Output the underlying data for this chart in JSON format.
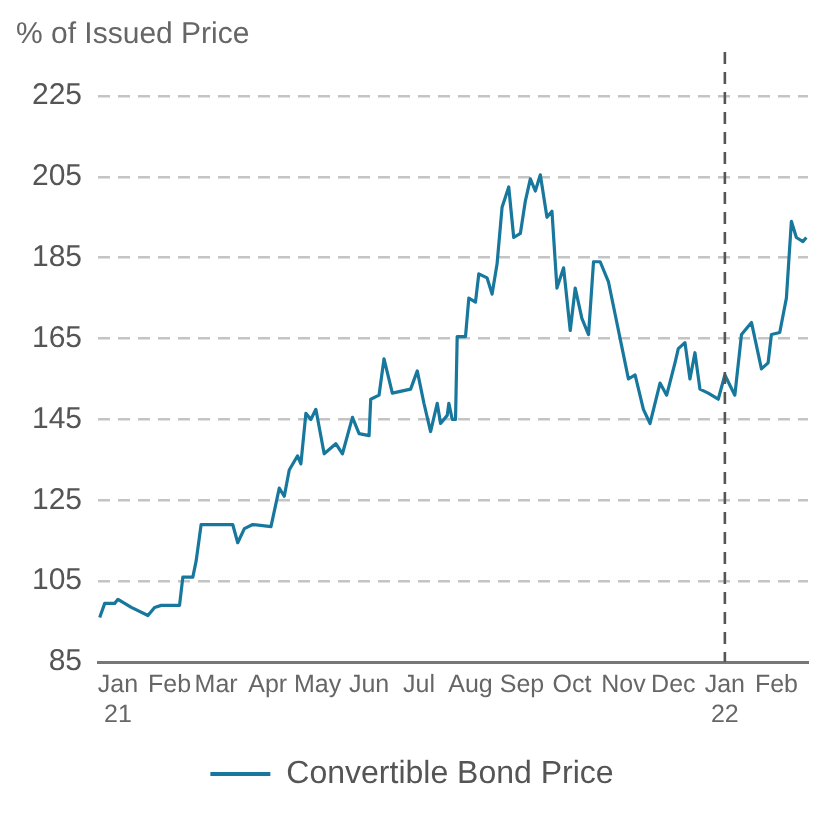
{
  "chart_data": {
    "type": "line",
    "ylabel": "% of Issued Price",
    "x": [
      "2020-12-21",
      "2020-12-24",
      "2020-12-30",
      "2021-01-01",
      "2021-01-09",
      "2021-01-19",
      "2021-01-23",
      "2021-01-27",
      "2021-02-07",
      "2021-02-09",
      "2021-02-15",
      "2021-02-17",
      "2021-02-20",
      "2021-03-11",
      "2021-03-14",
      "2021-03-18",
      "2021-03-23",
      "2021-04-03",
      "2021-04-08",
      "2021-04-11",
      "2021-04-14",
      "2021-04-19",
      "2021-04-21",
      "2021-04-24",
      "2021-04-27",
      "2021-04-30",
      "2021-05-05",
      "2021-05-12",
      "2021-05-16",
      "2021-05-22",
      "2021-05-26",
      "2021-06-01",
      "2021-06-02",
      "2021-06-07",
      "2021-06-10",
      "2021-06-15",
      "2021-06-26",
      "2021-06-30",
      "2021-07-04",
      "2021-07-08",
      "2021-07-12",
      "2021-07-14",
      "2021-07-18",
      "2021-07-19",
      "2021-07-21",
      "2021-07-23",
      "2021-07-24",
      "2021-07-29",
      "2021-07-31",
      "2021-08-04",
      "2021-08-06",
      "2021-08-11",
      "2021-08-14",
      "2021-08-17",
      "2021-08-20",
      "2021-08-24",
      "2021-08-27",
      "2021-08-31",
      "2021-09-03",
      "2021-09-06",
      "2021-09-09",
      "2021-09-12",
      "2021-09-16",
      "2021-09-19",
      "2021-09-22",
      "2021-09-26",
      "2021-09-30",
      "2021-10-03",
      "2021-10-07",
      "2021-10-11",
      "2021-10-14",
      "2021-10-18",
      "2021-10-23",
      "2021-10-26",
      "2021-10-31",
      "2021-11-04",
      "2021-11-08",
      "2021-11-13",
      "2021-11-17",
      "2021-11-23",
      "2021-11-27",
      "2021-12-02",
      "2021-12-04",
      "2021-12-08",
      "2021-12-11",
      "2021-12-14",
      "2021-12-17",
      "2021-12-22",
      "2021-12-28",
      "2022-01-01",
      "2022-01-07",
      "2022-01-11",
      "2022-01-17",
      "2022-01-23",
      "2022-01-27",
      "2022-01-29",
      "2022-02-03",
      "2022-02-07",
      "2022-02-10",
      "2022-02-13",
      "2022-02-17",
      "2022-02-19"
    ],
    "series": [
      {
        "name": "Convertible Bond Price",
        "color": "#17779d",
        "values": [
          96,
          99.5,
          99.5,
          100.5,
          98.5,
          96.5,
          98.5,
          99,
          99,
          106,
          106,
          110,
          119,
          119,
          114.5,
          118,
          119,
          118.5,
          128,
          126,
          132.5,
          136,
          134,
          146.5,
          145,
          147.5,
          136.5,
          139,
          136.5,
          145.5,
          141.5,
          141,
          150,
          151,
          160,
          151.5,
          152.5,
          157,
          149,
          142,
          149,
          144,
          146,
          149,
          145,
          145,
          165.5,
          165.5,
          175,
          174,
          181,
          180,
          176,
          183.5,
          197.5,
          202.5,
          190,
          191,
          199,
          204.5,
          201.5,
          205.5,
          195,
          196.5,
          177.5,
          182.5,
          167,
          177.5,
          170,
          166,
          184,
          184,
          179,
          173,
          163,
          155,
          156,
          147.5,
          144,
          154,
          151,
          159,
          162.5,
          164,
          155,
          161.5,
          152.5,
          151.5,
          150,
          156,
          151,
          166,
          169,
          157.5,
          159,
          166,
          166.5,
          175,
          194,
          190,
          189,
          190
        ]
      }
    ],
    "xlim": [
      "2020-12-20",
      "2022-02-20"
    ],
    "xticks": [
      {
        "value": "2021-01-01",
        "label": "Jan 21"
      },
      {
        "value": "2021-02-01",
        "label": "Feb"
      },
      {
        "value": "2021-03-01",
        "label": "Mar"
      },
      {
        "value": "2021-04-01",
        "label": "Apr"
      },
      {
        "value": "2021-05-01",
        "label": "May"
      },
      {
        "value": "2021-06-01",
        "label": "Jun"
      },
      {
        "value": "2021-07-01",
        "label": "Jul"
      },
      {
        "value": "2021-08-01",
        "label": "Aug"
      },
      {
        "value": "2021-09-01",
        "label": "Sep"
      },
      {
        "value": "2021-10-01",
        "label": "Oct"
      },
      {
        "value": "2021-11-01",
        "label": "Nov"
      },
      {
        "value": "2021-12-01",
        "label": "Dec"
      },
      {
        "value": "2022-01-01",
        "label": "Jan 22"
      },
      {
        "value": "2022-02-01",
        "label": "Feb"
      }
    ],
    "ylim": [
      85,
      225
    ],
    "yticks": [
      85,
      105,
      125,
      145,
      165,
      185,
      205,
      225
    ],
    "grid": "y",
    "legend": "bottom",
    "marker": "none",
    "line_style": "solid",
    "ref_lines": [
      {
        "axis": "x",
        "value": "2022-01-01",
        "color": "#555555",
        "line_style": "dashed"
      }
    ]
  }
}
